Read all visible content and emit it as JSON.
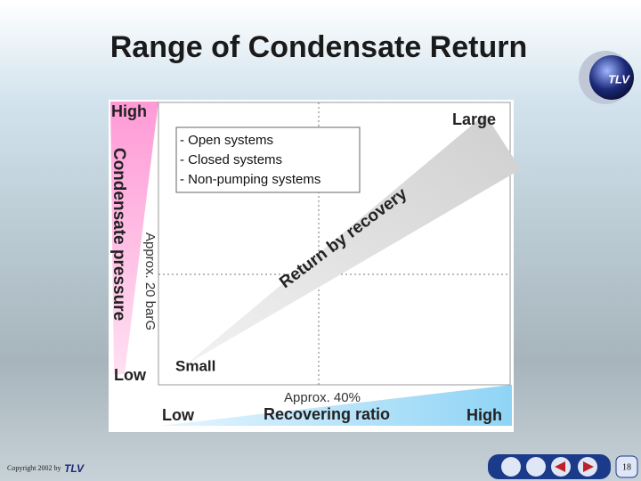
{
  "header": {
    "title": "Range of Condensate Return",
    "logo": "TLV"
  },
  "diagram": {
    "y_axis": {
      "high": "High",
      "label": "Condensate pressure",
      "low": "Low",
      "threshold": "Approx. 20 barG"
    },
    "x_axis": {
      "low": "Low",
      "label": "Recovering ratio",
      "high": "High",
      "threshold": "Approx. 40%"
    },
    "quadrant_note": [
      "- Open systems",
      "- Closed systems",
      "- Non-pumping systems"
    ],
    "wedge": {
      "label": "Return by recovery",
      "large": "Large",
      "small": "Small"
    }
  },
  "footer": {
    "copyright": "Copyright 2002 by",
    "brand": "TLV",
    "page": "18"
  }
}
